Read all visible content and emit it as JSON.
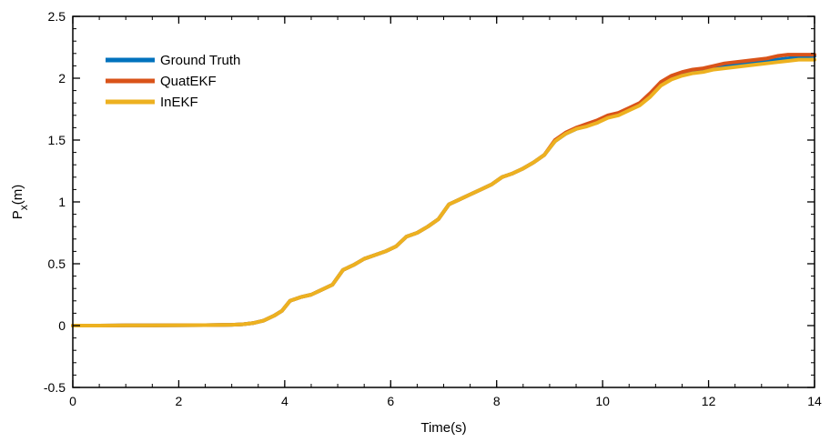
{
  "chart_data": {
    "type": "line",
    "title": "",
    "xlabel": "Time(s)",
    "ylabel_main": "P",
    "ylabel_sub": "x",
    "ylabel_tail": "(m)",
    "xlim": [
      0,
      14
    ],
    "ylim": [
      -0.5,
      2.5
    ],
    "xticks": [
      0,
      2,
      4,
      6,
      8,
      10,
      12,
      14
    ],
    "yticks": [
      -0.5,
      0,
      0.5,
      1,
      1.5,
      2,
      2.5
    ],
    "xtick_labels": [
      "0",
      "2",
      "4",
      "6",
      "8",
      "10",
      "12",
      "14"
    ],
    "ytick_labels": [
      "-0.5",
      "0",
      "0.5",
      "1",
      "1.5",
      "2",
      "2.5"
    ],
    "grid": false,
    "legend_position": "top-left",
    "series": [
      {
        "name": "Ground Truth",
        "color": "#0072BD",
        "x": [
          0,
          0.5,
          1,
          1.5,
          2,
          2.5,
          3,
          3.2,
          3.4,
          3.6,
          3.8,
          3.95,
          4.1,
          4.3,
          4.5,
          4.7,
          4.9,
          5.1,
          5.3,
          5.5,
          5.7,
          5.9,
          6.1,
          6.3,
          6.5,
          6.7,
          6.9,
          7.1,
          7.3,
          7.5,
          7.7,
          7.9,
          8.1,
          8.3,
          8.5,
          8.7,
          8.9,
          9.1,
          9.3,
          9.5,
          9.7,
          9.9,
          10.1,
          10.3,
          10.5,
          10.7,
          10.9,
          11.1,
          11.3,
          11.5,
          11.7,
          11.9,
          12.1,
          12.3,
          12.5,
          12.7,
          12.9,
          13.1,
          13.3,
          13.5,
          13.7,
          14
        ],
        "y": [
          0,
          0,
          0.002,
          0.002,
          0.003,
          0.004,
          0.006,
          0.01,
          0.02,
          0.04,
          0.08,
          0.12,
          0.2,
          0.23,
          0.25,
          0.29,
          0.33,
          0.45,
          0.49,
          0.54,
          0.57,
          0.6,
          0.64,
          0.72,
          0.75,
          0.8,
          0.86,
          0.98,
          1.02,
          1.06,
          1.1,
          1.14,
          1.2,
          1.23,
          1.27,
          1.32,
          1.38,
          1.49,
          1.55,
          1.59,
          1.62,
          1.64,
          1.69,
          1.71,
          1.75,
          1.79,
          1.86,
          1.95,
          2.0,
          2.03,
          2.05,
          2.06,
          2.08,
          2.1,
          2.11,
          2.12,
          2.13,
          2.14,
          2.15,
          2.16,
          2.17,
          2.18
        ]
      },
      {
        "name": "QuatEKF",
        "color": "#D95319",
        "x": [
          0,
          0.5,
          1,
          1.5,
          2,
          2.5,
          3,
          3.2,
          3.4,
          3.6,
          3.8,
          3.95,
          4.1,
          4.3,
          4.5,
          4.7,
          4.9,
          5.1,
          5.3,
          5.5,
          5.7,
          5.9,
          6.1,
          6.3,
          6.5,
          6.7,
          6.9,
          7.1,
          7.3,
          7.5,
          7.7,
          7.9,
          8.1,
          8.3,
          8.5,
          8.7,
          8.9,
          9.1,
          9.3,
          9.5,
          9.7,
          9.9,
          10.1,
          10.3,
          10.5,
          10.7,
          10.9,
          11.1,
          11.3,
          11.5,
          11.7,
          11.9,
          12.1,
          12.3,
          12.5,
          12.7,
          12.9,
          13.1,
          13.3,
          13.5,
          13.7,
          14
        ],
        "y": [
          0,
          0,
          0.002,
          0.002,
          0.003,
          0.004,
          0.006,
          0.01,
          0.02,
          0.04,
          0.08,
          0.12,
          0.2,
          0.23,
          0.25,
          0.29,
          0.33,
          0.45,
          0.49,
          0.54,
          0.57,
          0.6,
          0.64,
          0.72,
          0.75,
          0.8,
          0.86,
          0.98,
          1.02,
          1.06,
          1.1,
          1.14,
          1.2,
          1.23,
          1.27,
          1.32,
          1.38,
          1.5,
          1.56,
          1.6,
          1.63,
          1.66,
          1.7,
          1.72,
          1.76,
          1.8,
          1.88,
          1.97,
          2.02,
          2.05,
          2.07,
          2.08,
          2.1,
          2.12,
          2.13,
          2.14,
          2.15,
          2.16,
          2.18,
          2.19,
          2.19,
          2.19
        ]
      },
      {
        "name": "InEKF",
        "color": "#EDB120",
        "x": [
          0,
          0.5,
          1,
          1.5,
          2,
          2.5,
          3,
          3.2,
          3.4,
          3.6,
          3.8,
          3.95,
          4.1,
          4.3,
          4.5,
          4.7,
          4.9,
          5.1,
          5.3,
          5.5,
          5.7,
          5.9,
          6.1,
          6.3,
          6.5,
          6.7,
          6.9,
          7.1,
          7.3,
          7.5,
          7.7,
          7.9,
          8.1,
          8.3,
          8.5,
          8.7,
          8.9,
          9.1,
          9.3,
          9.5,
          9.7,
          9.9,
          10.1,
          10.3,
          10.5,
          10.7,
          10.9,
          11.1,
          11.3,
          11.5,
          11.7,
          11.9,
          12.1,
          12.3,
          12.5,
          12.7,
          12.9,
          13.1,
          13.3,
          13.5,
          13.7,
          14
        ],
        "y": [
          0,
          0,
          0.002,
          0.002,
          0.003,
          0.004,
          0.006,
          0.01,
          0.02,
          0.04,
          0.08,
          0.12,
          0.2,
          0.23,
          0.25,
          0.29,
          0.33,
          0.45,
          0.49,
          0.54,
          0.57,
          0.6,
          0.64,
          0.72,
          0.75,
          0.8,
          0.86,
          0.98,
          1.02,
          1.06,
          1.1,
          1.14,
          1.2,
          1.23,
          1.27,
          1.32,
          1.38,
          1.49,
          1.55,
          1.59,
          1.61,
          1.64,
          1.68,
          1.7,
          1.74,
          1.78,
          1.85,
          1.94,
          1.99,
          2.02,
          2.04,
          2.05,
          2.07,
          2.08,
          2.09,
          2.1,
          2.11,
          2.12,
          2.13,
          2.14,
          2.15,
          2.15
        ]
      }
    ]
  }
}
